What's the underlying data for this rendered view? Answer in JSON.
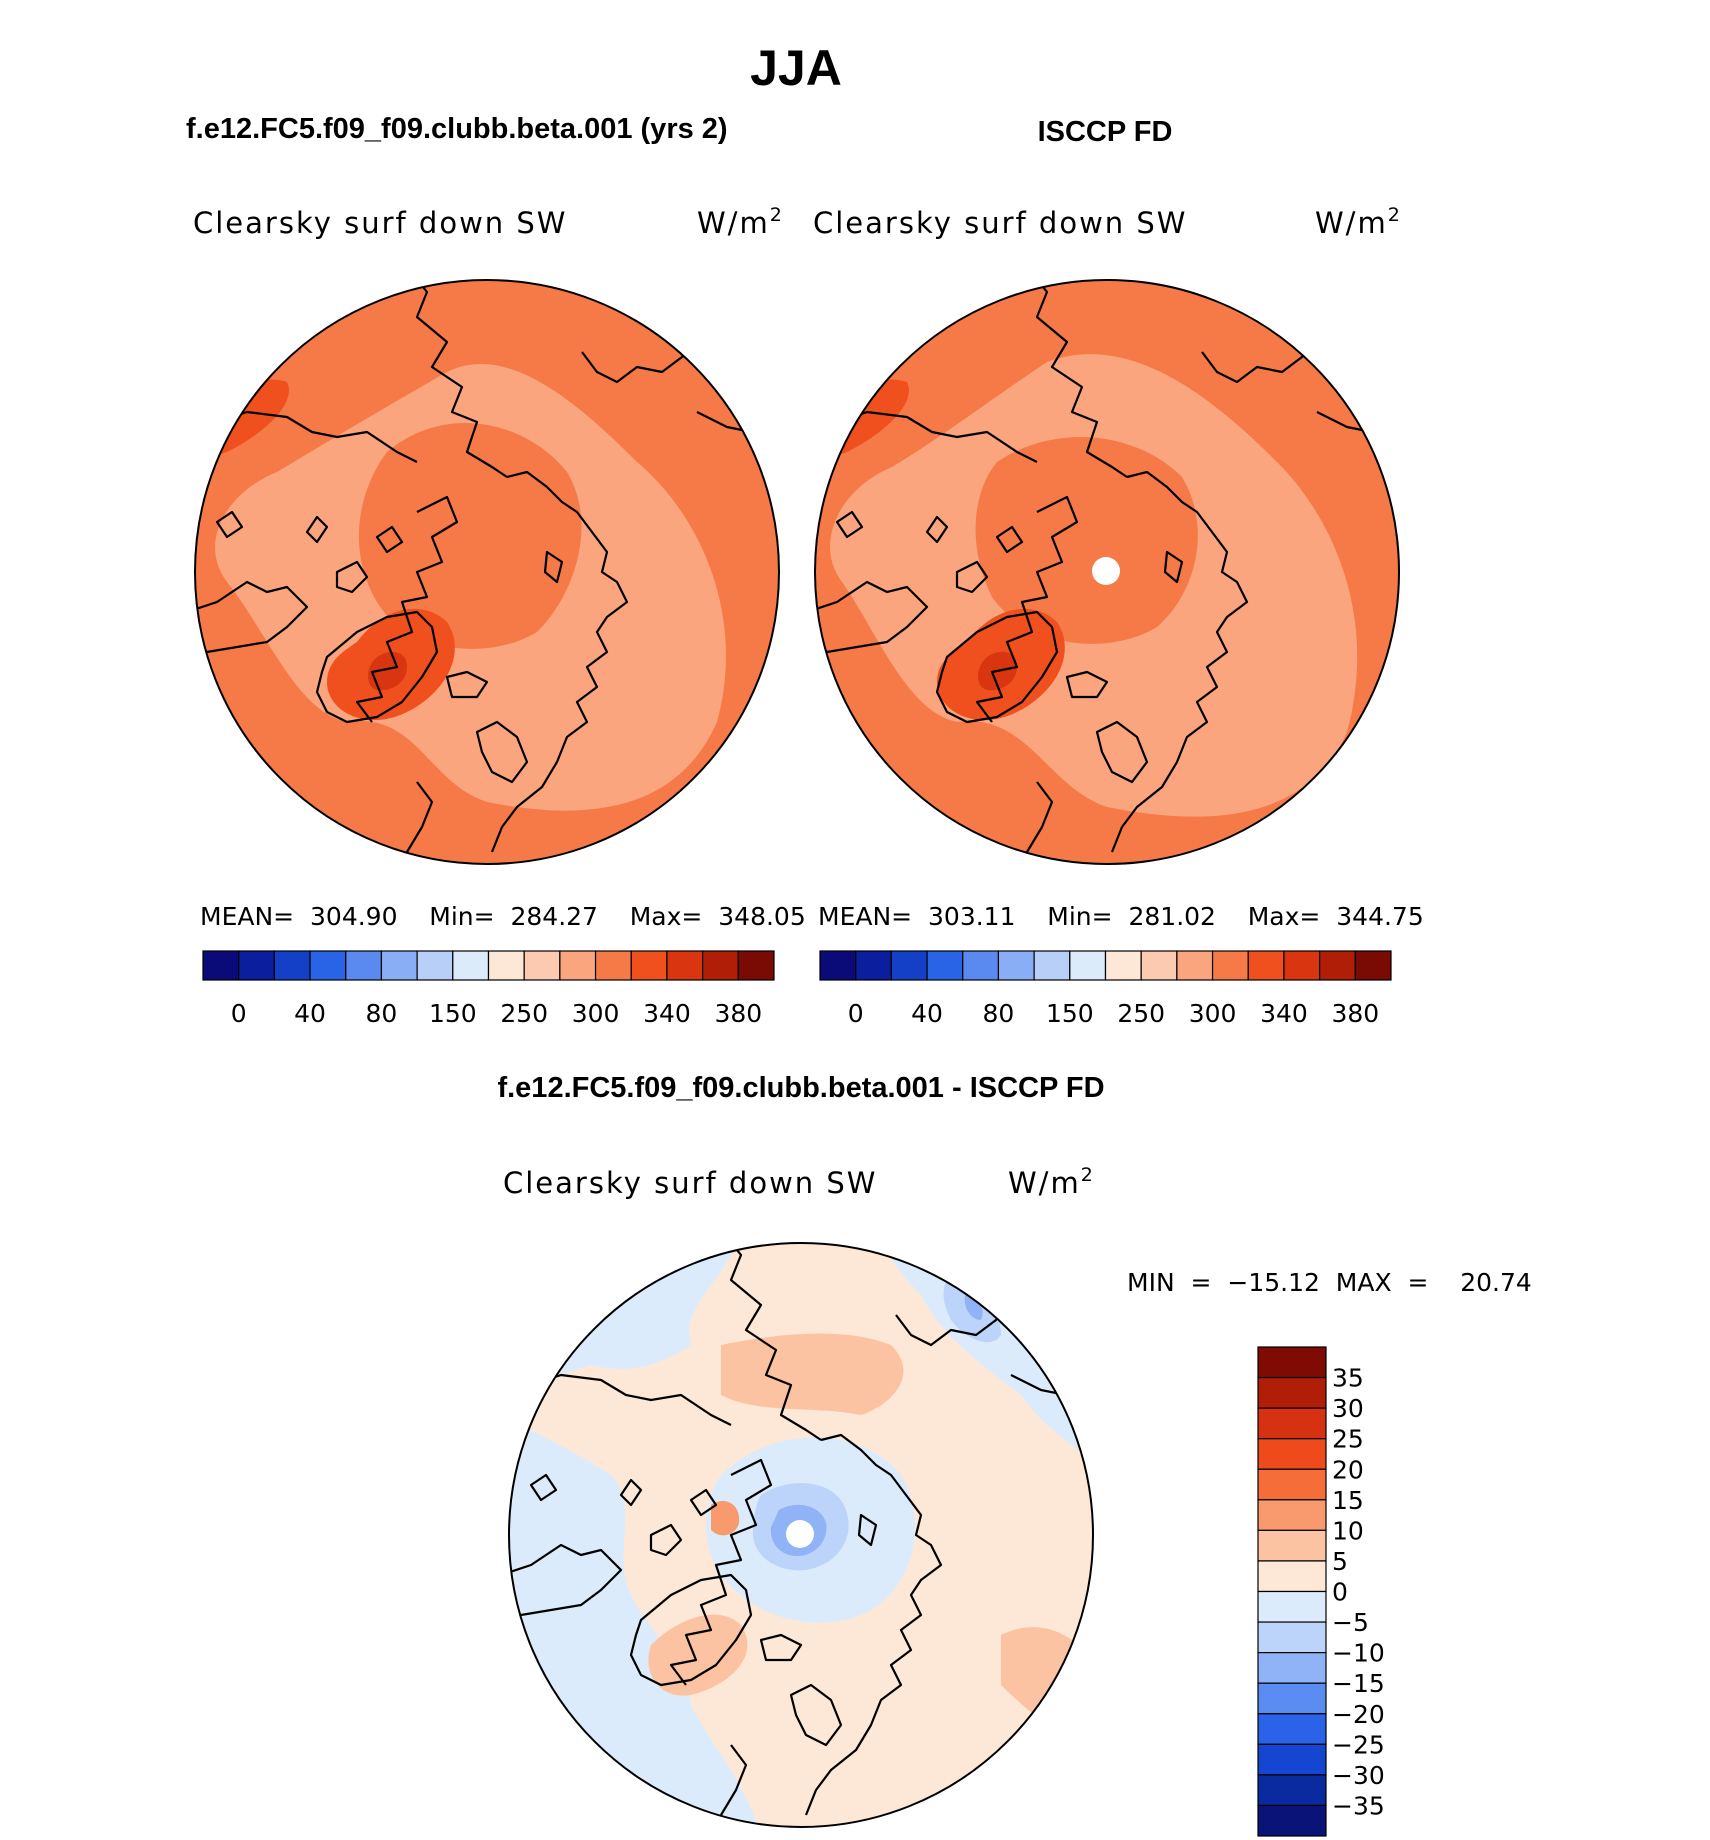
{
  "figure": {
    "season": "JJA",
    "model_title": "f.e12.FC5.f09_f09.clubb.beta.001 (yrs 2)",
    "obs_title": "ISCCP FD",
    "diff_title": "f.e12.FC5.f09_f09.clubb.beta.001 - ISCCP FD"
  },
  "panels": {
    "model": {
      "variable": "Clearsky surf down SW",
      "units": "W/m",
      "units_exp": "2",
      "stats": "MEAN=  304.90    Min=  284.27    Max=  348.05"
    },
    "obs": {
      "variable": "Clearsky surf down SW",
      "units": "W/m",
      "units_exp": "2",
      "stats": "MEAN=  303.11    Min=  281.02    Max=  344.75"
    },
    "diff": {
      "variable": "Clearsky surf down SW",
      "units": "W/m",
      "units_exp": "2",
      "stats": "MIN  =  −15.12  MAX  =    20.74"
    }
  },
  "colorbars": {
    "abs": {
      "colors": [
        "#0a0a78",
        "#0a1e9e",
        "#1440c8",
        "#2a64e6",
        "#5a8af0",
        "#8aaef5",
        "#b8d0f8",
        "#dcebfa",
        "#fde8d8",
        "#fccab0",
        "#faa57e",
        "#f57a48",
        "#f0501e",
        "#d93510",
        "#b01e08",
        "#7a0a04"
      ],
      "labels": [
        "0",
        "40",
        "80",
        "150",
        "250",
        "300",
        "340",
        "380"
      ]
    },
    "diff": {
      "colors": [
        "#0a1478",
        "#0a2aa0",
        "#1446d2",
        "#2a62e8",
        "#5a8cf2",
        "#8fb3f6",
        "#bcd4f9",
        "#dcebfb",
        "#fde8d8",
        "#fbc3a2",
        "#f99a6e",
        "#f56e3a",
        "#ee4a1c",
        "#d63212",
        "#b01e08",
        "#800a04"
      ],
      "labels": [
        "35",
        "30",
        "25",
        "20",
        "15",
        "10",
        "5",
        "0",
        "−5",
        "−10",
        "−15",
        "−20",
        "−25",
        "−30",
        "−35"
      ]
    }
  },
  "colors": {
    "abs_background": "#f57a48",
    "abs_light": "#faa57e",
    "abs_dark": "#f0501e",
    "abs_darkest": "#d93510",
    "diff_background": "#fde8d8",
    "diff_blue_light": "#dcebfb",
    "diff_blue_mid": "#bcd4f9",
    "diff_blue_dark": "#8fb3f6",
    "diff_red_light": "#fbc3a2",
    "diff_red_mid": "#f99a6e"
  }
}
